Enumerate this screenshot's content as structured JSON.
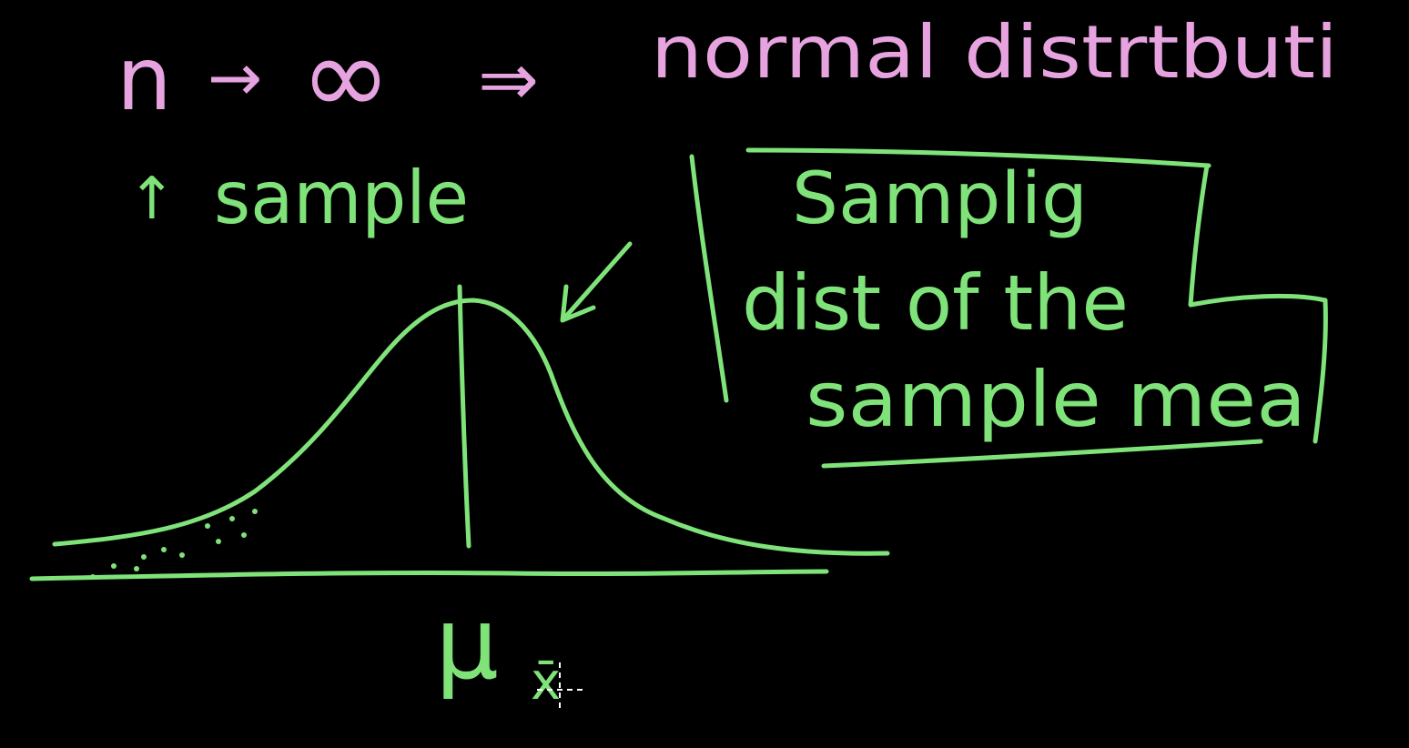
{
  "colors": {
    "background": "#000000",
    "pink": "#e6a3e0",
    "green": "#7fe37a",
    "cursor": "#ffffff"
  },
  "top_line": {
    "n_symbol": "n",
    "arrow_symbol": "→",
    "infinity_symbol": "∞",
    "implies_symbol": "⇒",
    "text": "normal distrtbuti"
  },
  "sample_label": {
    "arrow_symbol": "↑",
    "text": "sample"
  },
  "boxed_note": {
    "line1": "Samplig",
    "line2": "dist of the",
    "line3": "sample mea"
  },
  "axis_label": {
    "mu_symbol": "μ",
    "subscript": "x̄"
  }
}
